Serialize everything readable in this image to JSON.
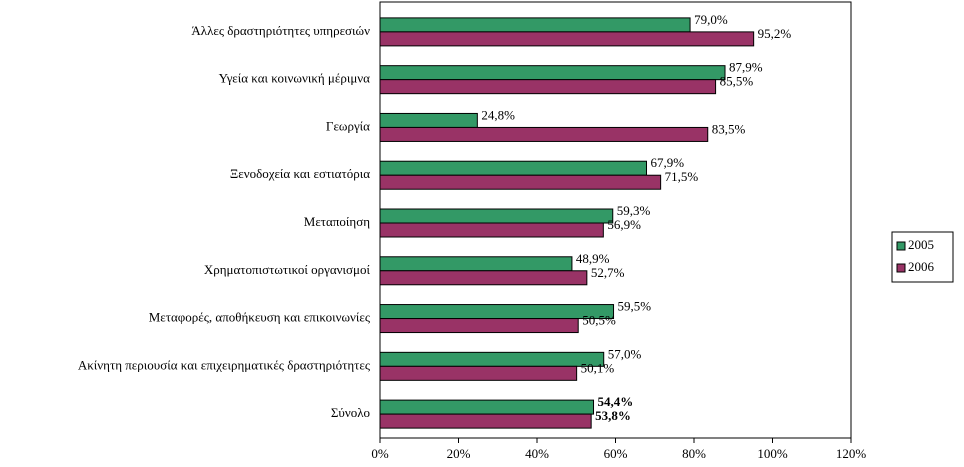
{
  "chart_data": {
    "type": "bar",
    "orientation": "horizontal",
    "categories": [
      "Άλλες δραστηριότητες υπηρεσιών",
      "Υγεία και κοινωνική μέριμνα",
      "Γεωργία",
      "Ξενοδοχεία και εστιατόρια",
      "Μεταποίηση",
      "Χρηματοπιστωτικοί οργανισμοί",
      "Μεταφορές, αποθήκευση και επικοινωνίες",
      "Ακίνητη περιουσία και επιχειρηματικές δραστηριότητες",
      "Σύνολο"
    ],
    "series": [
      {
        "name": "2005",
        "color": "#339966",
        "values": [
          79.0,
          87.9,
          24.8,
          67.9,
          59.3,
          48.9,
          59.5,
          57.0,
          54.4
        ],
        "value_labels": [
          "79,0%",
          "87,9%",
          "24,8%",
          "67,9%",
          "59,3%",
          "48,9%",
          "59,5%",
          "57,0%",
          "54,4%"
        ]
      },
      {
        "name": "2006",
        "color": "#993366",
        "values": [
          95.2,
          85.5,
          83.5,
          71.5,
          56.9,
          52.7,
          50.5,
          50.1,
          53.8
        ],
        "value_labels": [
          "95,2%",
          "85,5%",
          "83,5%",
          "71,5%",
          "56,9%",
          "52,7%",
          "50,5%",
          "50,1%",
          "53,8%"
        ]
      }
    ],
    "xlim": [
      0,
      120
    ],
    "xticks": [
      {
        "value": 0,
        "label": "0%"
      },
      {
        "value": 20,
        "label": "20%"
      },
      {
        "value": 40,
        "label": "40%"
      },
      {
        "value": 60,
        "label": "60%"
      },
      {
        "value": 80,
        "label": "80%"
      },
      {
        "value": 100,
        "label": "100%"
      },
      {
        "value": 120,
        "label": "120%"
      }
    ],
    "legend": "right"
  }
}
